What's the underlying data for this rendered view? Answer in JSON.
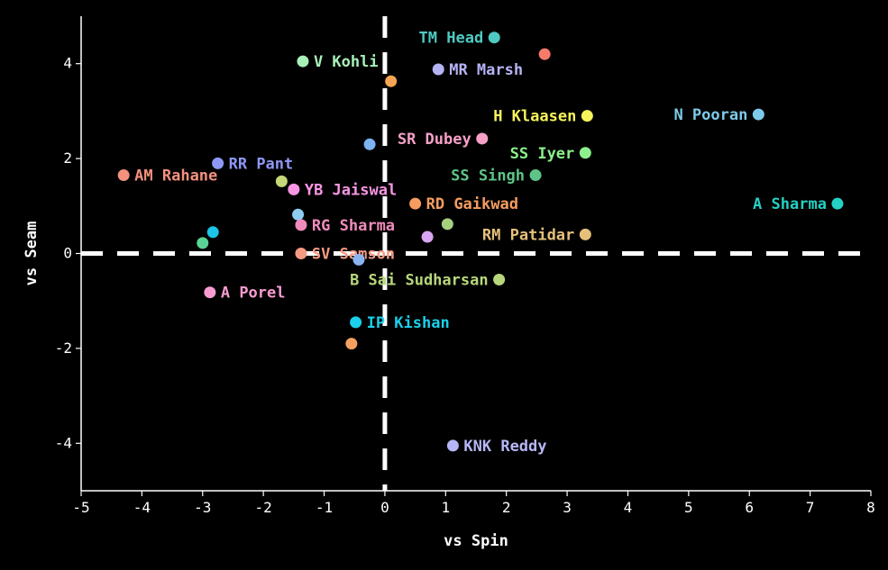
{
  "chart_data": {
    "type": "scatter",
    "xlabel": "vs Spin",
    "ylabel": "vs Seam",
    "xlim": [
      -5,
      8
    ],
    "ylim": [
      -5,
      5
    ],
    "x_ticks": [
      -5,
      -4,
      -3,
      -2,
      -1,
      0,
      1,
      2,
      3,
      4,
      5,
      6,
      7,
      8
    ],
    "y_ticks": [
      -4,
      -2,
      0,
      2,
      4
    ],
    "reference_lines": {
      "x": 0,
      "y": 0,
      "style": "dashed"
    },
    "grid": false,
    "points": [
      {
        "label": "TM Head",
        "x": 1.8,
        "y": 4.55,
        "color": "#4fc9c2",
        "label_side": "left"
      },
      {
        "label": "",
        "x": 2.63,
        "y": 4.2,
        "color": "#f77b6b"
      },
      {
        "label": "V Kohli",
        "x": -1.35,
        "y": 4.05,
        "color": "#a8f0b8",
        "label_side": "right"
      },
      {
        "label": "MR Marsh",
        "x": 0.88,
        "y": 3.88,
        "color": "#b6b3f5",
        "label_side": "right"
      },
      {
        "label": "",
        "x": 0.1,
        "y": 3.63,
        "color": "#f5a454"
      },
      {
        "label": "H Klaasen",
        "x": 3.33,
        "y": 2.9,
        "color": "#f7f35a",
        "label_side": "left"
      },
      {
        "label": "N Pooran",
        "x": 6.15,
        "y": 2.93,
        "color": "#7dcbe8",
        "label_side": "left"
      },
      {
        "label": "SR Dubey",
        "x": 1.6,
        "y": 2.42,
        "color": "#f6a0c8",
        "label_side": "left"
      },
      {
        "label": "",
        "x": -0.25,
        "y": 2.3,
        "color": "#7eb3f2"
      },
      {
        "label": "SS Iyer",
        "x": 3.3,
        "y": 2.12,
        "color": "#8cf08c",
        "label_side": "left"
      },
      {
        "label": "RR Pant",
        "x": -2.75,
        "y": 1.9,
        "color": "#8d98f5",
        "label_side": "right"
      },
      {
        "label": "AM Rahane",
        "x": -4.3,
        "y": 1.65,
        "color": "#f4917f",
        "label_side": "right"
      },
      {
        "label": "SS Singh",
        "x": 2.48,
        "y": 1.65,
        "color": "#5ec487",
        "label_side": "left"
      },
      {
        "label": "",
        "x": -1.7,
        "y": 1.52,
        "color": "#c4d879"
      },
      {
        "label": "YB Jaiswal",
        "x": -1.5,
        "y": 1.35,
        "color": "#f896e4",
        "label_side": "right"
      },
      {
        "label": "RD Gaikwad",
        "x": 0.5,
        "y": 1.05,
        "color": "#f59c60",
        "label_side": "right"
      },
      {
        "label": "A Sharma",
        "x": 7.45,
        "y": 1.05,
        "color": "#25d0c4",
        "label_side": "left"
      },
      {
        "label": "",
        "x": -1.43,
        "y": 0.82,
        "color": "#8ecdf2"
      },
      {
        "label": "RG Sharma",
        "x": -1.38,
        "y": 0.6,
        "color": "#f08cbc",
        "label_side": "right"
      },
      {
        "label": "",
        "x": 1.03,
        "y": 0.62,
        "color": "#a6d17d"
      },
      {
        "label": "",
        "x": -2.83,
        "y": 0.45,
        "color": "#1cc4e6"
      },
      {
        "label": "RM Patidar",
        "x": 3.3,
        "y": 0.4,
        "color": "#e6c07a",
        "label_side": "left"
      },
      {
        "label": "",
        "x": 0.7,
        "y": 0.35,
        "color": "#d8a6f2"
      },
      {
        "label": "",
        "x": -3.0,
        "y": 0.22,
        "color": "#5ad494"
      },
      {
        "label": "SV Samson",
        "x": -1.38,
        "y": 0.0,
        "color": "#f59a82",
        "label_side": "right"
      },
      {
        "label": "",
        "x": -0.43,
        "y": -0.13,
        "color": "#8ab4ef"
      },
      {
        "label": "B Sai Sudharsan",
        "x": 1.88,
        "y": -0.55,
        "color": "#b8d77c",
        "label_side": "left"
      },
      {
        "label": "A Porel",
        "x": -2.88,
        "y": -0.82,
        "color": "#f79cd0",
        "label_side": "right"
      },
      {
        "label": "IP Kishan",
        "x": -0.48,
        "y": -1.45,
        "color": "#1ad0ea",
        "label_side": "right"
      },
      {
        "label": "",
        "x": -0.55,
        "y": -1.9,
        "color": "#f5a060"
      },
      {
        "label": "KNK Reddy",
        "x": 1.12,
        "y": -4.05,
        "color": "#b6b6f6",
        "label_side": "right"
      }
    ]
  }
}
